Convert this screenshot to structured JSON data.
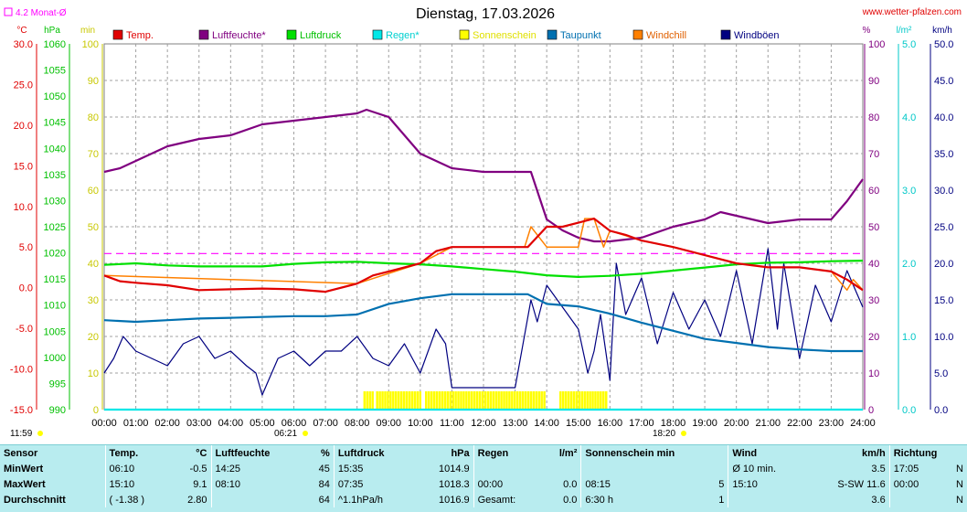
{
  "header": {
    "title": "Dienstag, 17.03.2026",
    "site": "www.wetter-pfalzen.com",
    "month_avg_label": "4.2 Monat-Ø",
    "start_time": "11:59",
    "sunrise": "06:21",
    "sunset": "18:20"
  },
  "colors": {
    "temp": "#e00000",
    "humidity": "#800080",
    "pressure": "#00e000",
    "rain": "#00e8e8",
    "sun": "#ffff00",
    "dewpoint": "#0070b0",
    "windchill": "#ff8000",
    "gust": "#000080",
    "avg": "#ff00ff"
  },
  "chart_data": {
    "type": "line",
    "title": "Dienstag, 17.03.2026",
    "x_ticks": [
      "00:00",
      "01:00",
      "02:00",
      "03:00",
      "04:00",
      "05:00",
      "06:00",
      "07:00",
      "08:00",
      "09:00",
      "10:00",
      "11:00",
      "12:00",
      "13:00",
      "14:00",
      "15:00",
      "16:00",
      "17:00",
      "18:00",
      "19:00",
      "20:00",
      "21:00",
      "22:00",
      "23:00",
      "24:00"
    ],
    "legend": [
      "Temp.",
      "Luftfeuchte*",
      "Luftdruck",
      "Regen*",
      "Sonnenschein",
      "Taupunkt",
      "Windchill",
      "Windböen"
    ],
    "axes": {
      "temp": {
        "unit": "°C",
        "min": -15,
        "max": 30,
        "ticks": [
          "30.0",
          "25.0",
          "20.0",
          "15.0",
          "10.0",
          "5.0",
          "0.0",
          "-5.0",
          "-10.0",
          "-15.0"
        ]
      },
      "pressure": {
        "unit": "hPa",
        "min": 990,
        "max": 1060,
        "ticks": [
          "1060",
          "1055",
          "1050",
          "1045",
          "1040",
          "1035",
          "1030",
          "1025",
          "1020",
          "1015",
          "1010",
          "1005",
          "1000",
          "995",
          "990"
        ]
      },
      "sunshine": {
        "unit": "min",
        "min": 0,
        "max": 100,
        "ticks": [
          "100",
          "90",
          "80",
          "70",
          "60",
          "50",
          "40",
          "30",
          "20",
          "10",
          "0"
        ]
      },
      "humidity": {
        "unit": "%",
        "min": 0,
        "max": 100,
        "ticks": [
          "100",
          "90",
          "80",
          "70",
          "60",
          "50",
          "40",
          "30",
          "20",
          "10",
          "0"
        ]
      },
      "rain": {
        "unit": "l/m²",
        "min": 0,
        "max": 5,
        "ticks": [
          "5.0",
          "4.0",
          "3.0",
          "2.0",
          "1.0",
          "0.0"
        ]
      },
      "wind": {
        "unit": "km/h",
        "min": 0,
        "max": 50,
        "ticks": [
          "50.0",
          "45.0",
          "40.0",
          "35.0",
          "30.0",
          "25.0",
          "20.0",
          "15.0",
          "10.0",
          "5.0",
          "0.0"
        ]
      }
    },
    "grid": true,
    "month_avg_temp": 4.2,
    "series": [
      {
        "name": "Temp.",
        "axis": "temp",
        "x": [
          0,
          0.5,
          1,
          2,
          3,
          4,
          5,
          6,
          7,
          8,
          8.5,
          9,
          10,
          10.5,
          11,
          12,
          13,
          13.4,
          14,
          14.5,
          15,
          15.5,
          16,
          16.5,
          17,
          18,
          19,
          20,
          21,
          22,
          23,
          23.5,
          24
        ],
        "values": [
          1.5,
          0.8,
          0.6,
          0.3,
          -0.3,
          -0.2,
          -0.1,
          -0.2,
          -0.5,
          0.5,
          1.5,
          2.0,
          3.0,
          4.5,
          5.0,
          5.0,
          5.0,
          5.0,
          7.5,
          7.5,
          8.0,
          8.5,
          7.0,
          6.5,
          5.8,
          5.0,
          4.0,
          3.0,
          2.5,
          2.5,
          2.0,
          1.0,
          -0.3
        ]
      },
      {
        "name": "Luftfeuchte*",
        "axis": "humidity",
        "x": [
          0,
          0.5,
          1,
          2,
          3,
          4,
          5,
          6,
          7,
          8,
          8.3,
          9,
          10,
          11,
          12,
          13,
          13.5,
          14,
          14.5,
          15,
          15.5,
          16,
          17,
          18,
          19,
          19.5,
          20,
          21,
          22,
          23,
          23.5,
          24
        ],
        "values": [
          65,
          66,
          68,
          72,
          74,
          75,
          78,
          79,
          80,
          81,
          82,
          80,
          70,
          66,
          65,
          65,
          65,
          52,
          49,
          47,
          46,
          46,
          47,
          50,
          52,
          54,
          53,
          51,
          52,
          52,
          57,
          63
        ]
      },
      {
        "name": "Luftdruck",
        "axis": "pressure",
        "x": [
          0,
          1,
          2,
          3,
          4,
          5,
          6,
          7,
          8,
          9,
          10,
          11,
          12,
          13,
          14,
          15,
          16,
          17,
          18,
          19,
          20,
          21,
          22,
          23,
          24
        ],
        "values": [
          1017.7,
          1018.0,
          1017.6,
          1017.4,
          1017.4,
          1017.4,
          1017.9,
          1018.2,
          1018.3,
          1018.0,
          1017.8,
          1017.4,
          1016.9,
          1016.4,
          1015.7,
          1015.4,
          1015.6,
          1016.0,
          1016.6,
          1017.2,
          1017.8,
          1018.1,
          1018.2,
          1018.4,
          1018.5
        ]
      },
      {
        "name": "Regen*",
        "axis": "rain",
        "x": [
          0,
          24
        ],
        "values": [
          0.0,
          0.0
        ]
      },
      {
        "name": "Taupunkt",
        "axis": "temp",
        "x": [
          0,
          1,
          2,
          3,
          4,
          5,
          6,
          7,
          8,
          9,
          10,
          11,
          12,
          13,
          13.4,
          14,
          15,
          16,
          17,
          18,
          19,
          20,
          21,
          22,
          23,
          24
        ],
        "values": [
          -4.0,
          -4.2,
          -4.0,
          -3.8,
          -3.7,
          -3.6,
          -3.5,
          -3.5,
          -3.3,
          -2.0,
          -1.3,
          -0.8,
          -0.8,
          -0.8,
          -0.8,
          -2.0,
          -2.3,
          -3.2,
          -4.3,
          -5.3,
          -6.3,
          -6.8,
          -7.3,
          -7.6,
          -7.8,
          -7.8
        ]
      },
      {
        "name": "Windchill",
        "axis": "temp",
        "x": [
          0,
          8,
          10,
          11,
          13.3,
          13.5,
          14,
          14.3,
          15,
          15.2,
          15.5,
          15.8,
          16,
          17,
          18,
          19,
          20,
          21,
          22,
          23,
          23.5,
          23.7,
          24
        ],
        "values": [
          1.5,
          0.5,
          3.0,
          5.0,
          5.0,
          7.5,
          5.0,
          5.0,
          5.0,
          8.5,
          8.5,
          5.0,
          7.0,
          5.8,
          5.0,
          4.0,
          3.0,
          2.5,
          2.5,
          2.0,
          -0.3,
          1.0,
          -0.3
        ]
      },
      {
        "name": "Windböen",
        "axis": "wind",
        "x": [
          0,
          0.3,
          0.6,
          1,
          1.5,
          2,
          2.5,
          3,
          3.5,
          4,
          4.5,
          4.8,
          5,
          5.2,
          5.5,
          6,
          6.5,
          7,
          7.5,
          8,
          8.5,
          9,
          9.5,
          10,
          10.5,
          10.8,
          11,
          12,
          13,
          13.5,
          13.7,
          14,
          14.5,
          15,
          15.3,
          15.5,
          15.7,
          16,
          16.2,
          16.5,
          17,
          17.5,
          18,
          18.5,
          19,
          19.5,
          20,
          20.5,
          21,
          21.3,
          21.5,
          22,
          22.5,
          23,
          23.5,
          24
        ],
        "values": [
          5,
          7,
          10,
          8,
          7,
          6,
          9,
          10,
          7,
          8,
          6,
          5,
          2,
          4,
          7,
          8,
          6,
          8,
          8,
          10,
          7,
          6,
          9,
          5,
          11,
          9,
          3,
          3,
          3,
          15,
          12,
          17,
          14,
          11,
          5,
          8,
          13,
          4,
          20,
          13,
          18,
          9,
          16,
          11,
          15,
          10,
          19,
          9,
          22,
          11,
          20,
          7,
          17,
          12,
          19,
          14
        ]
      }
    ],
    "sunshine_blocks": [
      [
        8.2,
        8.5
      ],
      [
        8.6,
        10.0
      ],
      [
        10.15,
        13.9
      ],
      [
        14.4,
        15.9
      ]
    ]
  },
  "stats": {
    "headers": [
      "Sensor",
      "Temp.",
      "°C",
      "Luftfeuchte",
      "%",
      "Luftdruck",
      "hPa",
      "Regen",
      "l/m²",
      "Sonnenschein min",
      "Wind",
      "km/h",
      "Richtung"
    ],
    "rows": [
      {
        "label": "MinWert",
        "temp_t": "06:10",
        "temp_v": "-0.5",
        "hum_t": "14:25",
        "hum_v": "45",
        "press_t": "15:35",
        "press_v": "1014.9",
        "rain_t": "",
        "rain_v": "",
        "sun_t": "",
        "sun_v": "",
        "wind_t": "Ø 10 min.",
        "wind_v": "3.5",
        "dir_t": "17:05",
        "dir_v": "N"
      },
      {
        "label": "MaxWert",
        "temp_t": "15:10",
        "temp_v": "9.1",
        "hum_t": "08:10",
        "hum_v": "84",
        "press_t": "07:35",
        "press_v": "1018.3",
        "rain_t": "00:00",
        "rain_v": "0.0",
        "sun_t": "08:15",
        "sun_v": "5",
        "wind_t": "15:10",
        "wind_v": "S-SW 11.6",
        "dir_t": "00:00",
        "dir_v": "N"
      },
      {
        "label": "Durchschnitt",
        "temp_t": "( -1.38 )",
        "temp_v": "2.80",
        "hum_t": "",
        "hum_v": "64",
        "press_t": "^1.1hPa/h",
        "press_v": "1016.9",
        "rain_t": "Gesamt:",
        "rain_v": "0.0",
        "sun_t": "6:30 h",
        "sun_v": "1",
        "wind_t": "",
        "wind_v": "3.6",
        "dir_t": "",
        "dir_v": "N"
      }
    ]
  }
}
